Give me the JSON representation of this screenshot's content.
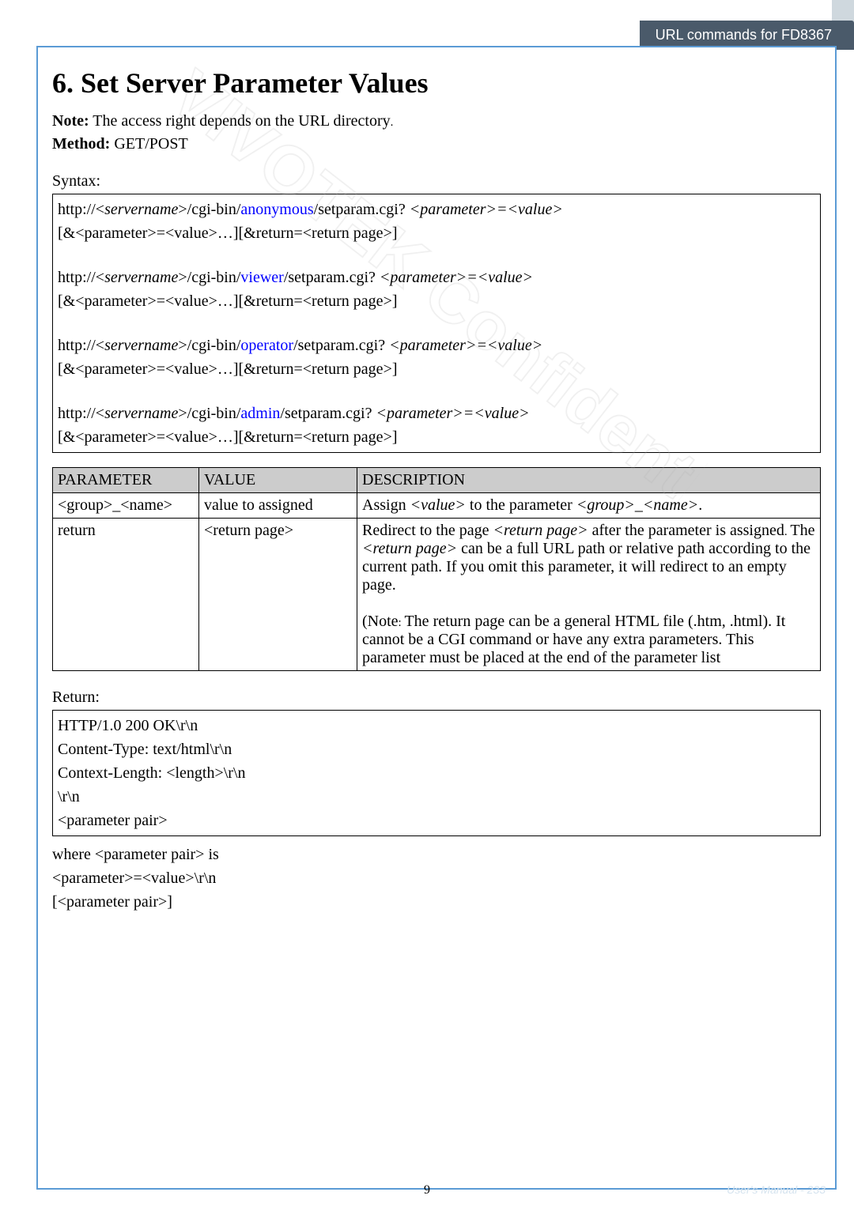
{
  "header": {
    "title": "URL commands for FD8367"
  },
  "section": {
    "heading": "6. Set Server Parameter Values",
    "note_prefix": "Note:",
    "note_text": " The access right depends on the URL directory",
    "note_period": ".",
    "method_label": "Method:",
    "method_value": " GET/POST"
  },
  "syntax": {
    "label": "Syntax:",
    "blocks": [
      {
        "p1a": "http://<",
        "p1b": "servername",
        "p1c": ">/cgi-bin/",
        "p1d": "anonymous",
        "p1e": "/setparam.cgi? ",
        "p1f": "<parameter>=<value>",
        "p2": "[&<parameter>=<value>…][&return=<return page>]"
      },
      {
        "p1a": "http://<",
        "p1b": "servername",
        "p1c": ">/cgi-bin/",
        "p1d": "viewer",
        "p1e": "/setparam.cgi? ",
        "p1f": "<parameter>=<value>",
        "p2": "[&<parameter>=<value>…][&return=<return page>]"
      },
      {
        "p1a": "http://<",
        "p1b": "servername",
        "p1c": ">/cgi-bin/",
        "p1d": "operator",
        "p1e": "/setparam.cgi? ",
        "p1f": "<parameter>=<value>",
        "p2": "[&<parameter>=<value>…][&return=<return page>]"
      },
      {
        "p1a": "http://<",
        "p1b": "servername",
        "p1c": ">/cgi-bin/",
        "p1d": "admin",
        "p1e": "/setparam.cgi? ",
        "p1f": "<parameter>=<value>",
        "p2": "[&<parameter>=<value>…][&return=<return page>]"
      }
    ]
  },
  "table": {
    "header": {
      "c1": "PARAMETER",
      "c2": "VALUE",
      "c3": "DESCRIPTION"
    },
    "row1": {
      "c1": "<group>_<name>",
      "c2": "value to assigned",
      "c3a": "Assign ",
      "c3b": "<value>",
      "c3c": " to the parameter ",
      "c3d": "<group>",
      "c3e": "_",
      "c3f": "<name>",
      "c3g": "."
    },
    "row2": {
      "c1": "return",
      "c2": "<return page>",
      "d1a": "Redirect to the page ",
      "d1b": "<return page>",
      "d1c": " after the parameter is assigned",
      "d1d": ". ",
      "d1e": "The ",
      "d1f": "<return page>",
      "d1g": " can be a full URL path or relative path according to the current path. If you omit this parameter, it will redirect to an empty page.",
      "d2a": "(Note",
      "d2b": ": ",
      "d2c": "The return page can be a general HTML file (.htm, .html). It cannot be a CGI command or have any extra parameters. This parameter must be placed at the end of the parameter list"
    }
  },
  "return": {
    "label": "Return:",
    "lines": [
      "HTTP/1.0 200 OK\\r\\n",
      "Content-Type: text/html\\r\\n",
      "Context-Length: <length>\\r\\n",
      "\\r\\n",
      "<parameter pair>"
    ],
    "after": [
      "where <parameter pair> is",
      "<parameter>=<value>\\r\\n",
      "[<parameter pair>]"
    ]
  },
  "footer": {
    "page": "9",
    "manual": "User's Manual - 233"
  },
  "watermark": "VIVOTEK Confidential"
}
